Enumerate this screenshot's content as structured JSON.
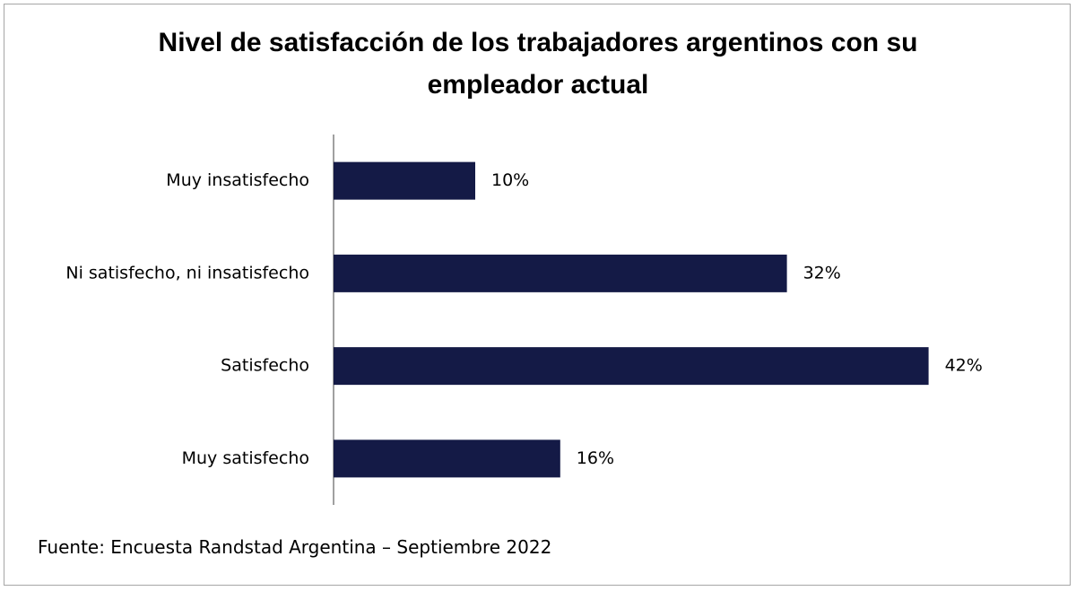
{
  "chart_data": {
    "type": "bar",
    "orientation": "horizontal",
    "title": "Nivel de satisfacción de los trabajadores argentinos con su empleador actual",
    "categories": [
      "Muy insatisfecho",
      "Ni satisfecho, ni insatisfecho",
      "Satisfecho",
      "Muy satisfecho"
    ],
    "values": [
      10,
      32,
      42,
      16
    ],
    "value_labels": [
      "10%",
      "32%",
      "42%",
      "16%"
    ],
    "color": "#141a46",
    "source": "Fuente: Encuesta Randstad Argentina – Septiembre 2022"
  }
}
